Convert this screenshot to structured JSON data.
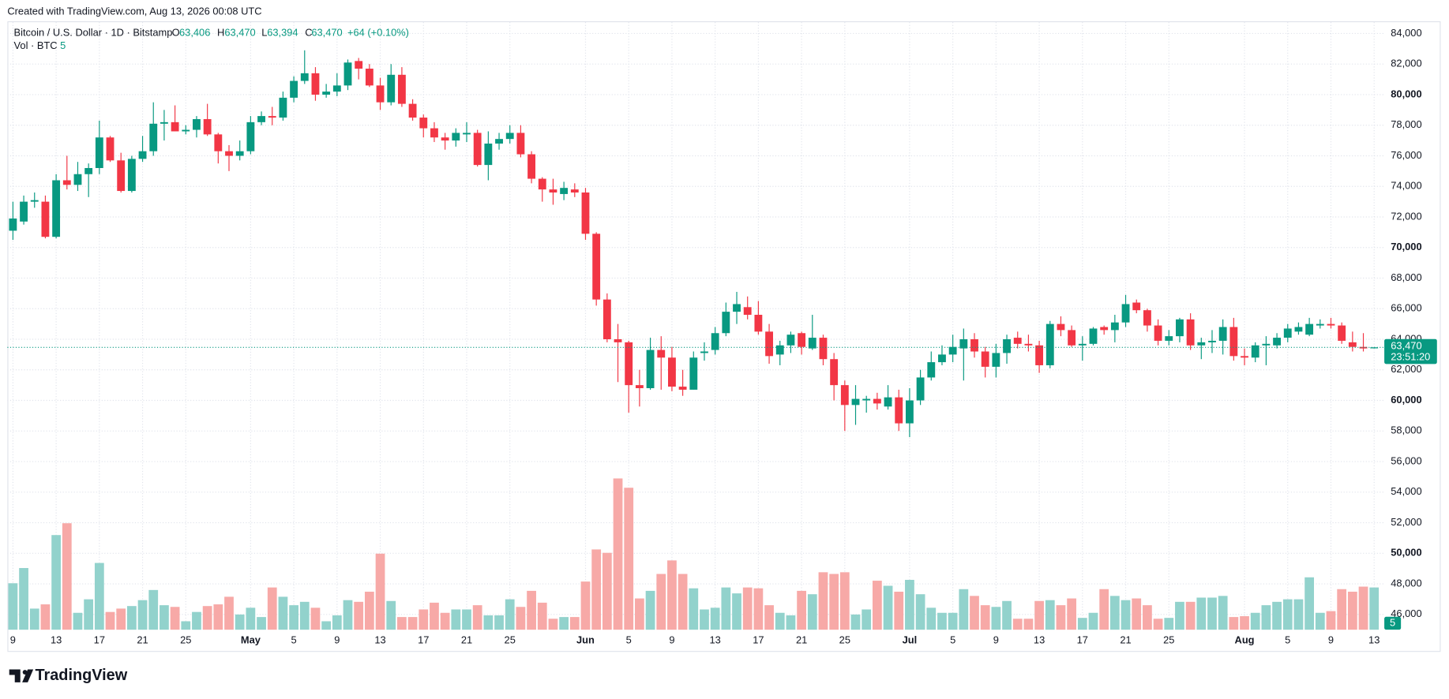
{
  "created": "Created with TradingView.com, Aug 13, 2026 00:08 UTC",
  "branding": "TradingView",
  "chart_data": {
    "type": "candlestick",
    "title": "Bitcoin / U.S. Dollar · 1D · Bitstamp",
    "ohlc_legend": [
      {
        "key": "O",
        "value": "63,406"
      },
      {
        "key": "H",
        "value": "63,470"
      },
      {
        "key": "L",
        "value": "63,394"
      },
      {
        "key": "C",
        "value": "63,470"
      }
    ],
    "change": "+64 (+0.10%)",
    "last_price_label": "63,470",
    "countdown": "23:51:20",
    "up_color": "#089981",
    "down_color": "#f23645",
    "volume_up_color": "#92d2cc",
    "volume_down_color": "#f7a9a7",
    "grid": true,
    "categories": [
      "9",
      null,
      null,
      null,
      "13",
      null,
      null,
      null,
      "17",
      null,
      null,
      null,
      "21",
      null,
      null,
      null,
      "25",
      null,
      null,
      null,
      null,
      null,
      "May",
      null,
      null,
      null,
      "5",
      null,
      null,
      null,
      "9",
      null,
      null,
      null,
      "13",
      null,
      null,
      null,
      "17",
      null,
      null,
      null,
      "21",
      null,
      null,
      null,
      "25",
      null,
      null,
      null,
      null,
      null,
      null,
      "Jun",
      null,
      null,
      null,
      "5",
      null,
      null,
      null,
      "9",
      null,
      null,
      null,
      "13",
      null,
      null,
      null,
      "17",
      null,
      null,
      null,
      "21",
      null,
      null,
      null,
      "25",
      null,
      null,
      null,
      null,
      null,
      "Jul",
      null,
      null,
      null,
      "5",
      null,
      null,
      null,
      "9",
      null,
      null,
      null,
      "13",
      null,
      null,
      null,
      "17",
      null,
      null,
      null,
      "21",
      null,
      null,
      null,
      "25",
      null,
      null,
      null,
      null,
      null,
      null,
      "Aug",
      null,
      null,
      null,
      "5",
      null,
      null,
      null,
      "9",
      null,
      null,
      null,
      "13"
    ],
    "open": [
      71100,
      71700,
      73000,
      73000,
      70700,
      74400,
      74100,
      74800,
      75200,
      77200,
      75700,
      73700,
      75800,
      76300,
      78100,
      78200,
      77600,
      77700,
      78400,
      77400,
      76300,
      76000,
      76300,
      78200,
      78600,
      78500,
      79800,
      80900,
      81400,
      80000,
      80200,
      80600,
      82200,
      81700,
      80600,
      79500,
      81300,
      79400,
      78500,
      77800,
      77200,
      77000,
      77400,
      77500,
      75400,
      76800,
      77100,
      77500,
      76100,
      74500,
      73800,
      73500,
      73800,
      73600,
      70900,
      66600,
      64000,
      63800,
      61000,
      60800,
      63300,
      62800,
      60900,
      60700,
      63100,
      63300,
      64400,
      65800,
      66100,
      65600,
      64500,
      63000,
      63600,
      64400,
      63400,
      64100,
      62700,
      61000,
      59700,
      60000,
      60100,
      59600,
      60200,
      58500,
      60000,
      61500,
      62500,
      63000,
      63400,
      64000,
      63200,
      62200,
      63100,
      64100,
      63700,
      63600,
      62300,
      65000,
      64600,
      63600,
      63700,
      64800,
      64600,
      65100,
      66400,
      65900,
      64900,
      63900,
      64200,
      65300,
      63600,
      63800,
      63900,
      64800,
      62900,
      62800,
      63600,
      63600,
      64100,
      64500,
      64300,
      64900,
      65000,
      64900,
      63800,
      63500,
      63406
    ],
    "high": [
      73000,
      73400,
      73600,
      73400,
      74800,
      76000,
      75600,
      75500,
      78300,
      77300,
      76200,
      76000,
      77300,
      79500,
      79000,
      79300,
      78000,
      78600,
      79400,
      77500,
      76700,
      77000,
      78600,
      78900,
      79200,
      80200,
      81200,
      82900,
      81800,
      80700,
      81400,
      82300,
      82400,
      82000,
      81100,
      82000,
      81800,
      79700,
      78700,
      78200,
      77500,
      77800,
      78200,
      77700,
      77600,
      77500,
      78000,
      78000,
      76300,
      74600,
      74500,
      74300,
      74200,
      73900,
      71000,
      67000,
      65000,
      63900,
      62000,
      64100,
      64200,
      63500,
      62000,
      63200,
      63800,
      64800,
      66400,
      67100,
      66800,
      66500,
      65000,
      63900,
      64500,
      64500,
      65600,
      64300,
      63100,
      61300,
      61000,
      60300,
      60500,
      61000,
      60700,
      60800,
      62000,
      63200,
      63600,
      64300,
      64700,
      64400,
      63500,
      63700,
      64300,
      64500,
      64300,
      63900,
      65200,
      65500,
      64900,
      64200,
      64800,
      64900,
      65600,
      66900,
      66600,
      66000,
      65300,
      64600,
      65400,
      65700,
      64100,
      64600,
      65300,
      65400,
      63400,
      63800,
      64200,
      64400,
      65000,
      65100,
      65400,
      65300,
      65400,
      65100,
      64500,
      64400,
      63470
    ],
    "low": [
      70500,
      71500,
      72600,
      70600,
      70600,
      73800,
      73700,
      73300,
      74800,
      75600,
      73600,
      73600,
      75600,
      76000,
      77000,
      77600,
      77400,
      77200,
      77300,
      75500,
      75000,
      75700,
      76100,
      78000,
      78000,
      78300,
      79500,
      80700,
      79600,
      79800,
      79900,
      80300,
      81000,
      80500,
      79000,
      79300,
      79200,
      78300,
      77200,
      76900,
      76400,
      76600,
      76900,
      75300,
      74400,
      76400,
      76800,
      75900,
      74200,
      73000,
      72800,
      73100,
      73300,
      70500,
      66200,
      63800,
      61200,
      59200,
      59600,
      60700,
      60700,
      60600,
      60300,
      60700,
      62600,
      63000,
      64200,
      65000,
      65300,
      64300,
      62400,
      62300,
      63100,
      63000,
      63300,
      62300,
      60000,
      58000,
      58400,
      59200,
      59400,
      59400,
      58000,
      57600,
      59700,
      61300,
      62300,
      62500,
      61300,
      62800,
      61500,
      61500,
      62400,
      63400,
      63200,
      61800,
      62100,
      64200,
      63500,
      62600,
      63600,
      64300,
      63800,
      64800,
      65700,
      64500,
      63600,
      63600,
      63800,
      63300,
      62700,
      63100,
      63000,
      62600,
      62300,
      62500,
      62300,
      63400,
      63800,
      64300,
      64200,
      64700,
      64700,
      63700,
      63200,
      63200,
      63394
    ],
    "close": [
      71900,
      73000,
      73100,
      70700,
      74400,
      74100,
      74800,
      75200,
      77200,
      75700,
      73700,
      75800,
      76300,
      78100,
      78200,
      77600,
      77700,
      78400,
      77400,
      76300,
      76000,
      76300,
      78200,
      78600,
      78500,
      79800,
      80900,
      81400,
      80000,
      80200,
      80600,
      82100,
      81700,
      80600,
      79500,
      81300,
      79400,
      78500,
      77800,
      77200,
      77000,
      77500,
      77500,
      75400,
      76800,
      77100,
      77500,
      76100,
      74500,
      73800,
      73600,
      73900,
      73600,
      70900,
      66600,
      64000,
      63800,
      61000,
      60800,
      63300,
      62800,
      60900,
      60700,
      62800,
      63200,
      64400,
      65800,
      66300,
      65600,
      64500,
      62900,
      63600,
      64300,
      63500,
      64100,
      62700,
      61000,
      59700,
      60100,
      60100,
      59800,
      60200,
      58500,
      60000,
      61500,
      62500,
      63000,
      63500,
      64000,
      63200,
      62200,
      63100,
      64000,
      63700,
      63600,
      62300,
      65000,
      64600,
      63600,
      63700,
      64700,
      64600,
      65100,
      66300,
      65900,
      64900,
      63900,
      64200,
      65300,
      63600,
      63800,
      63900,
      64800,
      62900,
      62800,
      63600,
      63700,
      64100,
      64700,
      64800,
      65000,
      65000,
      64900,
      63900,
      63500,
      63400,
      63470
    ],
    "volume": {
      "name": "Vol · BTC",
      "axis": "y2",
      "values": [
        5.5,
        7.3,
        2.5,
        3.0,
        11.2,
        12.6,
        2.0,
        3.6,
        7.9,
        2.1,
        2.5,
        2.8,
        3.5,
        4.7,
        2.9,
        2.7,
        1.0,
        2.1,
        2.8,
        3.0,
        3.9,
        1.8,
        2.6,
        1.5,
        5.0,
        3.9,
        2.9,
        3.3,
        2.6,
        1.0,
        1.7,
        3.5,
        3.3,
        4.5,
        9.0,
        3.4,
        1.5,
        1.5,
        2.4,
        3.2,
        2.0,
        2.4,
        2.4,
        2.9,
        1.7,
        1.7,
        3.6,
        2.7,
        4.6,
        3.2,
        1.3,
        1.5,
        1.5,
        5.7,
        9.5,
        9.1,
        17.9,
        16.8,
        3.7,
        4.6,
        6.6,
        8.2,
        6.6,
        4.9,
        2.4,
        2.6,
        5.0,
        4.3,
        5.0,
        4.9,
        2.9,
        2.0,
        1.7,
        4.6,
        4.2,
        6.8,
        6.6,
        6.8,
        1.8,
        2.4,
        5.8,
        5.2,
        4.5,
        5.9,
        4.2,
        2.6,
        2.0,
        2.0,
        4.8,
        4.0,
        2.9,
        2.7,
        3.4,
        1.3,
        1.3,
        3.4,
        3.5,
        2.9,
        3.7,
        1.4,
        2.0,
        4.8,
        4.0,
        3.5,
        3.7,
        2.9,
        1.3,
        1.4,
        3.3,
        3.3,
        3.8,
        3.8,
        4.0,
        1.5,
        1.6,
        2.0,
        2.9,
        3.3,
        3.6,
        3.6,
        6.2,
        2.0,
        2.2,
        4.8,
        4.5,
        5.1,
        5
      ]
    },
    "ylim": [
      45000,
      84800
    ],
    "yticks": [
      {
        "value": 46000,
        "label": "46,000"
      },
      {
        "value": 48000,
        "label": "48,000"
      },
      {
        "value": 50000,
        "label": "50,000"
      },
      {
        "value": 52000,
        "label": "52,000"
      },
      {
        "value": 54000,
        "label": "54,000"
      },
      {
        "value": 56000,
        "label": "56,000"
      },
      {
        "value": 58000,
        "label": "58,000"
      },
      {
        "value": 60000,
        "label": "60,000"
      },
      {
        "value": 62000,
        "label": "62,000"
      },
      {
        "value": 64000,
        "label": "64,000"
      },
      {
        "value": 66000,
        "label": "66,000"
      },
      {
        "value": 68000,
        "label": "68,000"
      },
      {
        "value": 70000,
        "label": "70,000"
      },
      {
        "value": 72000,
        "label": "72,000"
      },
      {
        "value": 74000,
        "label": "74,000"
      },
      {
        "value": 76000,
        "label": "76,000"
      },
      {
        "value": 78000,
        "label": "78,000"
      },
      {
        "value": 80000,
        "label": "80,000"
      },
      {
        "value": 82000,
        "label": "82,000"
      },
      {
        "value": 84000,
        "label": "84,000"
      }
    ],
    "y2lim": [
      0,
      72
    ]
  }
}
